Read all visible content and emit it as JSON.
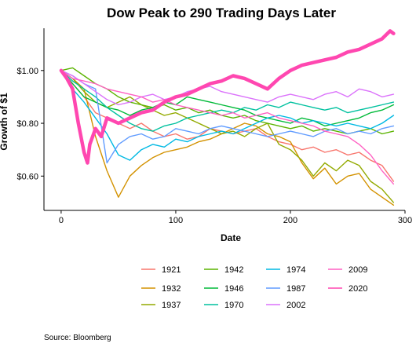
{
  "chart_data": {
    "type": "line",
    "title": "Dow Peak to 290 Trading Days Later",
    "xlabel": "Date",
    "ylabel": "Growth of $1",
    "xlim": [
      -15,
      300
    ],
    "ylim": [
      0.47,
      1.16
    ],
    "x_ticks": [
      {
        "value": 0,
        "label": "0"
      },
      {
        "value": 100,
        "label": "100"
      },
      {
        "value": 200,
        "label": "200"
      },
      {
        "value": 300,
        "label": "300"
      }
    ],
    "y_ticks": [
      {
        "value": 0.6,
        "label": "$0.60"
      },
      {
        "value": 0.8,
        "label": "$0.80"
      },
      {
        "value": 1.0,
        "label": "$1.00"
      }
    ],
    "grid": false,
    "legend_position": "bottom",
    "source": "Source:  Bloomberg",
    "series": [
      {
        "name": "1921",
        "color": "#F8766D",
        "x": [
          0,
          10,
          20,
          30,
          40,
          50,
          60,
          70,
          80,
          90,
          100,
          110,
          120,
          130,
          140,
          150,
          160,
          170,
          180,
          190,
          200,
          210,
          220,
          230,
          240,
          250,
          260,
          270,
          280,
          290
        ],
        "values": [
          1.0,
          0.95,
          0.9,
          0.84,
          0.82,
          0.8,
          0.78,
          0.8,
          0.77,
          0.75,
          0.76,
          0.74,
          0.75,
          0.78,
          0.77,
          0.76,
          0.77,
          0.78,
          0.75,
          0.73,
          0.72,
          0.7,
          0.71,
          0.69,
          0.7,
          0.68,
          0.69,
          0.66,
          0.64,
          0.58
        ]
      },
      {
        "name": "1932",
        "color": "#D39200",
        "x": [
          0,
          10,
          20,
          30,
          40,
          50,
          60,
          70,
          80,
          90,
          100,
          110,
          120,
          130,
          140,
          150,
          160,
          170,
          180,
          190,
          200,
          210,
          220,
          230,
          240,
          250,
          260,
          270,
          280,
          290
        ],
        "values": [
          1.0,
          0.97,
          0.93,
          0.75,
          0.62,
          0.52,
          0.6,
          0.64,
          0.67,
          0.69,
          0.7,
          0.71,
          0.73,
          0.74,
          0.76,
          0.78,
          0.8,
          0.79,
          0.76,
          0.75,
          0.73,
          0.65,
          0.59,
          0.63,
          0.57,
          0.6,
          0.61,
          0.55,
          0.52,
          0.49
        ]
      },
      {
        "name": "1937",
        "color": "#93AA00",
        "x": [
          0,
          10,
          20,
          30,
          40,
          50,
          60,
          70,
          80,
          90,
          100,
          110,
          120,
          130,
          140,
          150,
          160,
          170,
          180,
          190,
          200,
          210,
          220,
          230,
          240,
          250,
          260,
          270,
          280,
          290
        ],
        "values": [
          1.0,
          0.97,
          0.92,
          0.88,
          0.86,
          0.88,
          0.9,
          0.87,
          0.85,
          0.83,
          0.84,
          0.82,
          0.8,
          0.78,
          0.76,
          0.77,
          0.75,
          0.78,
          0.8,
          0.72,
          0.7,
          0.66,
          0.6,
          0.65,
          0.62,
          0.66,
          0.64,
          0.58,
          0.55,
          0.5
        ]
      },
      {
        "name": "1942",
        "color": "#5BB300",
        "x": [
          0,
          10,
          20,
          30,
          40,
          50,
          60,
          70,
          80,
          90,
          100,
          110,
          120,
          130,
          140,
          150,
          160,
          170,
          180,
          190,
          200,
          210,
          220,
          230,
          240,
          250,
          260,
          270,
          280,
          290
        ],
        "values": [
          1.0,
          1.01,
          0.98,
          0.95,
          0.93,
          0.9,
          0.88,
          0.87,
          0.86,
          0.87,
          0.85,
          0.86,
          0.84,
          0.85,
          0.83,
          0.82,
          0.83,
          0.81,
          0.8,
          0.79,
          0.78,
          0.79,
          0.77,
          0.78,
          0.77,
          0.76,
          0.77,
          0.78,
          0.76,
          0.77
        ]
      },
      {
        "name": "1946",
        "color": "#00BA38",
        "x": [
          0,
          10,
          20,
          30,
          40,
          50,
          60,
          70,
          80,
          90,
          100,
          110,
          120,
          130,
          140,
          150,
          160,
          170,
          180,
          190,
          200,
          210,
          220,
          230,
          240,
          250,
          260,
          270,
          280,
          290
        ],
        "values": [
          1.0,
          0.95,
          0.9,
          0.88,
          0.86,
          0.85,
          0.83,
          0.85,
          0.86,
          0.88,
          0.87,
          0.9,
          0.89,
          0.88,
          0.87,
          0.86,
          0.85,
          0.83,
          0.82,
          0.81,
          0.8,
          0.82,
          0.81,
          0.79,
          0.8,
          0.81,
          0.82,
          0.84,
          0.85,
          0.87
        ]
      },
      {
        "name": "1970",
        "color": "#00C19F",
        "x": [
          0,
          10,
          20,
          30,
          40,
          50,
          60,
          70,
          80,
          90,
          100,
          110,
          120,
          130,
          140,
          150,
          160,
          170,
          180,
          190,
          200,
          210,
          220,
          230,
          240,
          250,
          260,
          270,
          280,
          290
        ],
        "values": [
          1.0,
          0.96,
          0.93,
          0.9,
          0.86,
          0.83,
          0.8,
          0.78,
          0.77,
          0.79,
          0.8,
          0.82,
          0.83,
          0.84,
          0.85,
          0.84,
          0.86,
          0.85,
          0.87,
          0.86,
          0.88,
          0.87,
          0.86,
          0.85,
          0.86,
          0.84,
          0.85,
          0.86,
          0.87,
          0.88
        ]
      },
      {
        "name": "1974",
        "color": "#00B9E3",
        "x": [
          0,
          10,
          20,
          30,
          40,
          50,
          60,
          70,
          80,
          90,
          100,
          110,
          120,
          130,
          140,
          150,
          160,
          170,
          180,
          190,
          200,
          210,
          220,
          230,
          240,
          250,
          260,
          270,
          280,
          290
        ],
        "values": [
          1.0,
          0.93,
          0.88,
          0.82,
          0.76,
          0.68,
          0.66,
          0.7,
          0.72,
          0.71,
          0.74,
          0.73,
          0.75,
          0.76,
          0.77,
          0.76,
          0.78,
          0.8,
          0.82,
          0.83,
          0.82,
          0.8,
          0.81,
          0.8,
          0.79,
          0.8,
          0.79,
          0.78,
          0.8,
          0.83
        ]
      },
      {
        "name": "1987",
        "color": "#619CFF",
        "x": [
          0,
          10,
          20,
          30,
          40,
          50,
          60,
          70,
          80,
          90,
          100,
          110,
          120,
          130,
          140,
          150,
          160,
          170,
          180,
          190,
          200,
          210,
          220,
          230,
          240,
          250,
          260,
          270,
          280,
          290
        ],
        "values": [
          1.0,
          0.98,
          0.95,
          0.93,
          0.65,
          0.72,
          0.75,
          0.76,
          0.74,
          0.75,
          0.78,
          0.77,
          0.76,
          0.78,
          0.79,
          0.78,
          0.77,
          0.76,
          0.75,
          0.76,
          0.77,
          0.76,
          0.75,
          0.77,
          0.78,
          0.76,
          0.77,
          0.76,
          0.78,
          0.79
        ]
      },
      {
        "name": "2002",
        "color": "#DB72FB",
        "x": [
          0,
          10,
          20,
          30,
          40,
          50,
          60,
          70,
          80,
          90,
          100,
          110,
          120,
          130,
          140,
          150,
          160,
          170,
          180,
          190,
          200,
          210,
          220,
          230,
          240,
          250,
          260,
          270,
          280,
          290
        ],
        "values": [
          1.0,
          0.98,
          0.95,
          0.92,
          0.89,
          0.87,
          0.88,
          0.9,
          0.91,
          0.89,
          0.9,
          0.92,
          0.93,
          0.94,
          0.92,
          0.91,
          0.9,
          0.89,
          0.88,
          0.9,
          0.91,
          0.9,
          0.89,
          0.91,
          0.92,
          0.9,
          0.93,
          0.92,
          0.9,
          0.91
        ]
      },
      {
        "name": "2009",
        "color": "#FF61C3",
        "x": [
          0,
          10,
          20,
          30,
          40,
          50,
          60,
          70,
          80,
          90,
          100,
          110,
          120,
          130,
          140,
          150,
          160,
          170,
          180,
          190,
          200,
          210,
          220,
          230,
          240,
          250,
          260,
          270,
          280,
          290
        ],
        "values": [
          1.0,
          0.97,
          0.96,
          0.95,
          0.93,
          0.92,
          0.91,
          0.9,
          0.88,
          0.89,
          0.87,
          0.86,
          0.85,
          0.84,
          0.83,
          0.84,
          0.82,
          0.83,
          0.84,
          0.82,
          0.81,
          0.8,
          0.79,
          0.77,
          0.76,
          0.75,
          0.72,
          0.68,
          0.62,
          0.57
        ]
      },
      {
        "name": "2020",
        "color": "#FF47B0",
        "x": [
          0,
          5,
          10,
          15,
          20,
          23,
          25,
          30,
          35,
          40,
          50,
          60,
          70,
          80,
          90,
          100,
          110,
          120,
          130,
          140,
          150,
          160,
          170,
          180,
          190,
          200,
          210,
          220,
          230,
          240,
          250,
          260,
          270,
          280,
          287,
          290
        ],
        "values": [
          1.0,
          0.97,
          0.93,
          0.8,
          0.69,
          0.65,
          0.72,
          0.78,
          0.75,
          0.82,
          0.8,
          0.82,
          0.84,
          0.85,
          0.88,
          0.9,
          0.91,
          0.93,
          0.95,
          0.96,
          0.98,
          0.97,
          0.95,
          0.93,
          0.97,
          1.0,
          1.02,
          1.03,
          1.04,
          1.05,
          1.07,
          1.08,
          1.1,
          1.12,
          1.15,
          1.14
        ]
      }
    ]
  }
}
